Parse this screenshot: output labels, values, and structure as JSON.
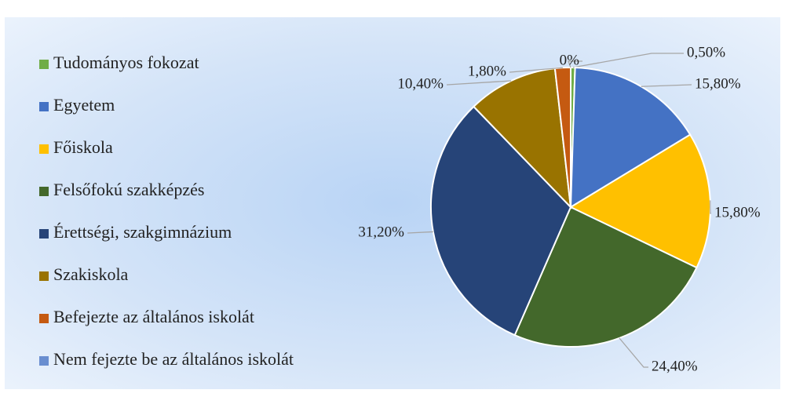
{
  "chart_data": {
    "type": "pie",
    "categories": [
      "Tudományos fokozat",
      "Egyetem",
      "Főiskola",
      "Felsőfokú szakképzés",
      "Érettségi, szakgimnázium",
      "Szakiskola",
      "Befejezte az általános iskolát",
      "Nem fejezte be az általános iskolát"
    ],
    "values": [
      0.5,
      15.8,
      15.8,
      24.4,
      31.2,
      10.4,
      1.8,
      0
    ],
    "value_labels": [
      "0,50%",
      "15,80%",
      "15,80%",
      "24,40%",
      "31,20%",
      "10,40%",
      "1,80%",
      "0%"
    ],
    "colors": [
      "#70ad47",
      "#4472c4",
      "#ffc000",
      "#43682b",
      "#264478",
      "#997300",
      "#c55a11",
      "#698ed0"
    ],
    "legend": "left"
  }
}
